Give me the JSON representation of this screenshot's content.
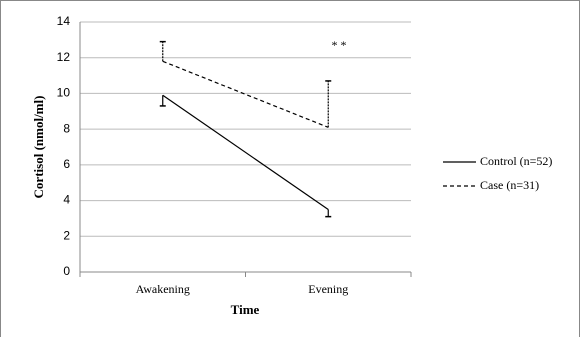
{
  "chart_data": {
    "type": "line",
    "x_label": "Time",
    "y_label": "Cortisol (nmol/ml)",
    "categories": [
      "Awakening",
      "Evening"
    ],
    "series": [
      {
        "name": "Control (n=52)",
        "color": "#000000",
        "dash": "solid",
        "values": [
          9.9,
          3.5
        ],
        "errors": [
          0.6,
          0.4
        ],
        "error_direction": "down"
      },
      {
        "name": "Case (n=31)",
        "color": "#000000",
        "dash": "dashed",
        "values": [
          11.8,
          8.1
        ],
        "errors": [
          1.1,
          2.6
        ],
        "error_direction": "up"
      }
    ],
    "annotation": "* *",
    "ylim": [
      0,
      14
    ],
    "yticks": [
      0,
      2,
      4,
      6,
      8,
      10,
      12,
      14
    ],
    "grid": true,
    "legend": "right"
  }
}
